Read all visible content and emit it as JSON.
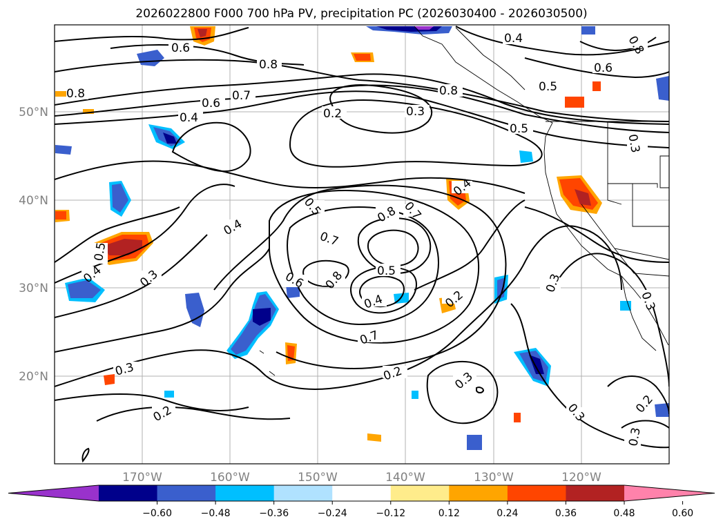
{
  "title": "2026022800 F000 700 hPa PV, precipitation PC (2026030400 - 2026030500)",
  "map": {
    "lat_labels": [
      "50°N",
      "40°N",
      "30°N",
      "20°N"
    ],
    "lon_labels": [
      "170°W",
      "160°W",
      "150°W",
      "140°W",
      "130°W",
      "120°W"
    ],
    "grid": true
  },
  "contour_labels": [
    "0.6",
    "0.8",
    "0.4",
    "0.8",
    "0.7",
    "0.6",
    "0.4",
    "0.2",
    "0.3",
    "0.8",
    "0.5",
    "0.6",
    "0.5",
    "0.8",
    "0.3",
    "0.4",
    "0.5",
    "0.8",
    "0.7",
    "0.4",
    "0.5",
    "0.7",
    "0.5",
    "0.4",
    "0.3",
    "0.6",
    "0.8",
    "0.4",
    "0.7",
    "0.2",
    "0.3",
    "0.2",
    "0.3",
    "0.3",
    "0.2",
    "0.3",
    "0.2",
    "0.3",
    "0.3"
  ],
  "colorbar": {
    "ticks": [
      "−0.60",
      "−0.48",
      "−0.36",
      "−0.24",
      "−0.12",
      "0.12",
      "0.24",
      "0.36",
      "0.48",
      "0.60"
    ],
    "colors": [
      "#9932cc",
      "#00008b",
      "#3a5fcd",
      "#00bfff",
      "#b0e2ff",
      "#ffffff",
      "#ffec8b",
      "#ffa500",
      "#ff4500",
      "#b22222",
      "#ff82ab"
    ]
  }
}
